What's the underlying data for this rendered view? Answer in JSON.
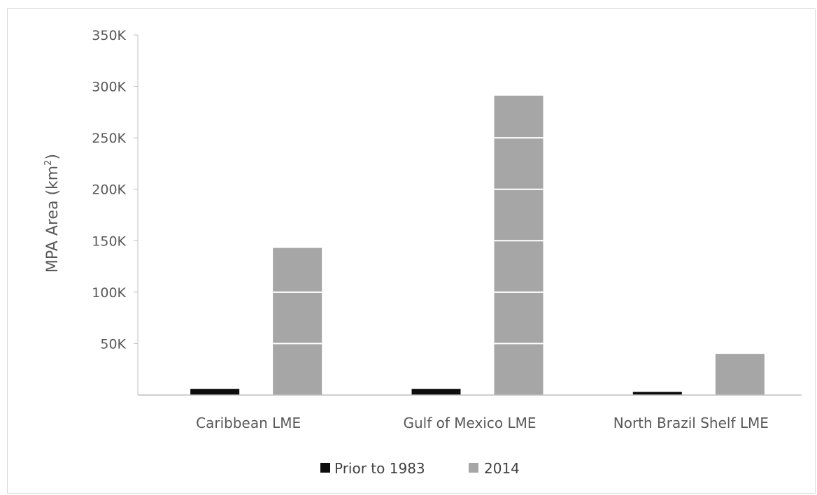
{
  "chart_data": {
    "type": "bar",
    "categories": [
      "Caribbean LME",
      "Gulf of Mexico LME",
      "North Brazil Shelf LME"
    ],
    "series": [
      {
        "name": "Prior to 1983",
        "values": [
          6000,
          6000,
          3000
        ],
        "color": "#0d0d0d"
      },
      {
        "name": "2014",
        "values": [
          143000,
          291000,
          40000
        ],
        "color": "#a6a6a6"
      }
    ],
    "ylabel_main": "MPA Area (km",
    "ylabel_sup": "2",
    "ylabel_close": ")",
    "ylim": [
      0,
      350000
    ],
    "yticks": [
      {
        "value": 50000,
        "label": "50K"
      },
      {
        "value": 100000,
        "label": "100K"
      },
      {
        "value": 150000,
        "label": "150K"
      },
      {
        "value": 200000,
        "label": "200K"
      },
      {
        "value": 250000,
        "label": "250K"
      },
      {
        "value": 300000,
        "label": "300K"
      },
      {
        "value": 350000,
        "label": "350K"
      }
    ],
    "gridlines": "white lines drawn across bars only",
    "legend_position": "bottom-center"
  }
}
